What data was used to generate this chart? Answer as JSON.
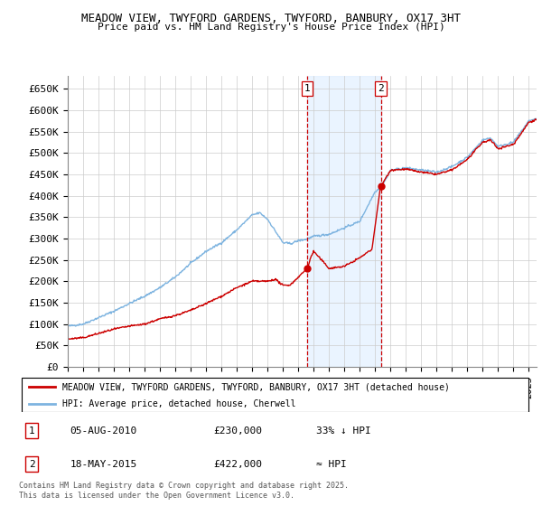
{
  "title1": "MEADOW VIEW, TWYFORD GARDENS, TWYFORD, BANBURY, OX17 3HT",
  "title2": "Price paid vs. HM Land Registry's House Price Index (HPI)",
  "ylabel_ticks": [
    "£0",
    "£50K",
    "£100K",
    "£150K",
    "£200K",
    "£250K",
    "£300K",
    "£350K",
    "£400K",
    "£450K",
    "£500K",
    "£550K",
    "£600K",
    "£650K"
  ],
  "ytick_vals": [
    0,
    50000,
    100000,
    150000,
    200000,
    250000,
    300000,
    350000,
    400000,
    450000,
    500000,
    550000,
    600000,
    650000
  ],
  "hpi_color": "#7eb4e0",
  "price_color": "#cc0000",
  "sale1_date": 2010.59,
  "sale1_price": 230000,
  "sale2_date": 2015.37,
  "sale2_price": 422000,
  "vline_color": "#cc0000",
  "shade_color": "#ddeeff",
  "legend_house": "MEADOW VIEW, TWYFORD GARDENS, TWYFORD, BANBURY, OX17 3HT (detached house)",
  "legend_hpi": "HPI: Average price, detached house, Cherwell",
  "footnote": "Contains HM Land Registry data © Crown copyright and database right 2025.\nThis data is licensed under the Open Government Licence v3.0.",
  "bg_color": "#ffffff",
  "grid_color": "#cccccc",
  "xmin": 1995,
  "xmax": 2025.5
}
